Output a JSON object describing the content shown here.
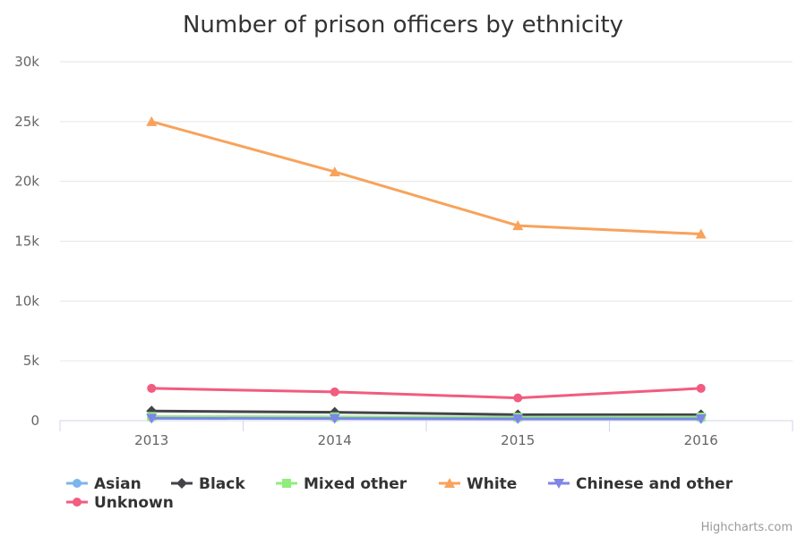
{
  "chart_data": {
    "type": "line",
    "title": "Number of prison officers by ethnicity",
    "xlabel": "",
    "ylabel": "",
    "categories": [
      "2013",
      "2014",
      "2015",
      "2016"
    ],
    "y_ticks": [
      "0",
      "5k",
      "10k",
      "15k",
      "20k",
      "25k",
      "30k"
    ],
    "ylim": [
      0,
      30000
    ],
    "grid": true,
    "legend_position": "bottom-left",
    "series": [
      {
        "name": "Asian",
        "color": "#7cb5ec",
        "marker": "circle",
        "values": [
          250,
          230,
          200,
          210
        ]
      },
      {
        "name": "Black",
        "color": "#434348",
        "marker": "diamond",
        "values": [
          800,
          700,
          500,
          500
        ]
      },
      {
        "name": "Mixed other",
        "color": "#90ed7d",
        "marker": "square",
        "values": [
          350,
          320,
          280,
          300
        ]
      },
      {
        "name": "White",
        "color": "#f7a35c",
        "marker": "triangle",
        "values": [
          25000,
          20800,
          16300,
          15600
        ]
      },
      {
        "name": "Chinese and other",
        "color": "#8085e9",
        "marker": "triangle-down",
        "values": [
          200,
          180,
          150,
          150
        ]
      },
      {
        "name": "Unknown",
        "color": "#f15c80",
        "marker": "circle",
        "values": [
          2700,
          2400,
          1900,
          2700
        ]
      }
    ]
  },
  "credits": "Highcharts.com"
}
